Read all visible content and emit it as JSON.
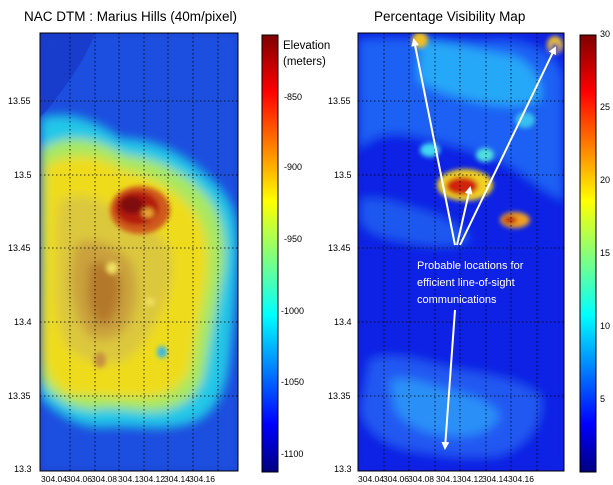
{
  "chart_data": [
    {
      "type": "heatmap",
      "title": "NAC DTM : Marius Hills  (40m/pixel)",
      "x_ticks": [
        "304.04",
        "304.06",
        "304.08",
        "304.1",
        "304.12",
        "304.14",
        "304.16"
      ],
      "y_ticks": [
        "13.55",
        "13.5",
        "13.45",
        "13.4",
        "13.35",
        "13.3"
      ],
      "colorbar": {
        "label_line1": "Elevation",
        "label_line2": "(meters)",
        "ticks": [
          "-850",
          "-900",
          "-950",
          "-1000",
          "-1050",
          "-1100"
        ],
        "range": [
          -1115,
          -805
        ],
        "colormap": "jet"
      },
      "grid": true
    },
    {
      "type": "heatmap",
      "title": "Percentage Visibility Map",
      "x_ticks": [
        "304.04",
        "304.06",
        "304.08",
        "304.1",
        "304.12",
        "304.14",
        "304.16"
      ],
      "y_ticks": [
        "13.55",
        "13.5",
        "13.45",
        "13.4",
        "13.35",
        "13.3"
      ],
      "colorbar": {
        "ticks": [
          "30",
          "25",
          "20",
          "15",
          "10",
          "5"
        ],
        "range": [
          0,
          30
        ],
        "colormap": "jet"
      },
      "grid": true,
      "annotation": {
        "line1": "Probable locations for",
        "line2": "efficient  line-of-sight",
        "line3": "communications"
      }
    }
  ]
}
